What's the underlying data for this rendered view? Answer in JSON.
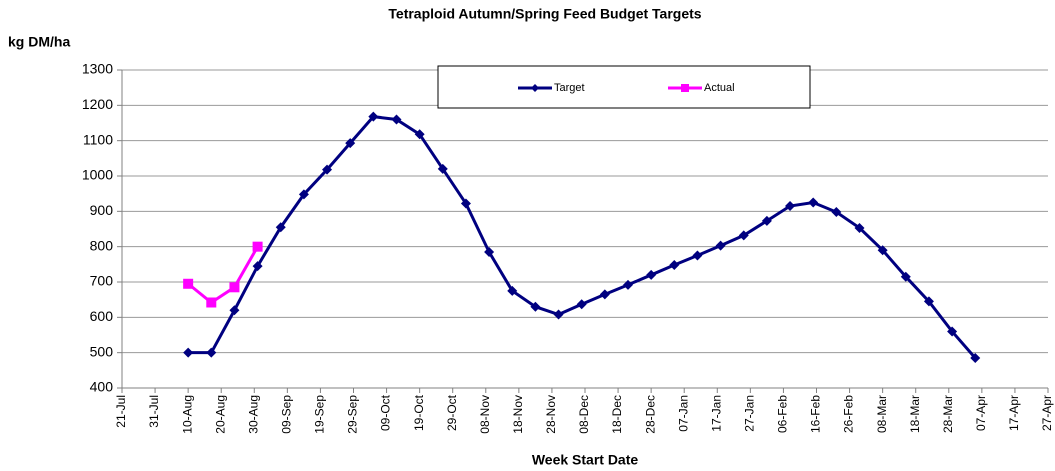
{
  "chart_data": {
    "type": "line",
    "title": "Tetraploid  Autumn/Spring Feed Budget Targets",
    "y_label": "kg DM/ha",
    "x_label": "Week Start Date",
    "xlim": [
      "21-Jul",
      "27-Apr"
    ],
    "xticks": [
      "21-Jul",
      "31-Jul",
      "10-Aug",
      "20-Aug",
      "30-Aug",
      "09-Sep",
      "19-Sep",
      "29-Sep",
      "09-Oct",
      "19-Oct",
      "29-Oct",
      "08-Nov",
      "18-Nov",
      "28-Nov",
      "08-Dec",
      "18-Dec",
      "28-Dec",
      "07-Jan",
      "17-Jan",
      "27-Jan",
      "06-Feb",
      "16-Feb",
      "26-Feb",
      "08-Mar",
      "18-Mar",
      "28-Mar",
      "07-Apr",
      "17-Apr",
      "27-Apr"
    ],
    "ylim": [
      400,
      1300
    ],
    "yticks": [
      400,
      500,
      600,
      700,
      800,
      900,
      1000,
      1100,
      1200,
      1300
    ],
    "grid": true,
    "legend": "top",
    "series": [
      {
        "name": "Target",
        "color": "#000080",
        "marker": "diamond",
        "x": [
          "10-Aug",
          "17-Aug",
          "24-Aug",
          "31-Aug",
          "07-Sep",
          "14-Sep",
          "21-Sep",
          "28-Sep",
          "05-Oct",
          "12-Oct",
          "19-Oct",
          "26-Oct",
          "02-Nov",
          "09-Nov",
          "16-Nov",
          "23-Nov",
          "30-Nov",
          "07-Dec",
          "14-Dec",
          "21-Dec",
          "28-Dec",
          "04-Jan",
          "11-Jan",
          "18-Jan",
          "25-Jan",
          "01-Feb",
          "08-Feb",
          "15-Feb",
          "22-Feb",
          "01-Mar",
          "08-Mar",
          "15-Mar",
          "22-Mar",
          "29-Mar",
          "05-Apr"
        ],
        "values": [
          500,
          500,
          620,
          745,
          855,
          948,
          1018,
          1093,
          1168,
          1160,
          1118,
          1020,
          922,
          785,
          675,
          630,
          608,
          637,
          665,
          692,
          720,
          748,
          775,
          803,
          832,
          873,
          915,
          925,
          898,
          853,
          790,
          715,
          645,
          560,
          485
        ]
      },
      {
        "name": "Actual",
        "color": "#ff00ff",
        "marker": "square",
        "x": [
          "10-Aug",
          "17-Aug",
          "24-Aug",
          "31-Aug"
        ],
        "values": [
          695,
          642,
          685,
          800
        ]
      }
    ]
  }
}
